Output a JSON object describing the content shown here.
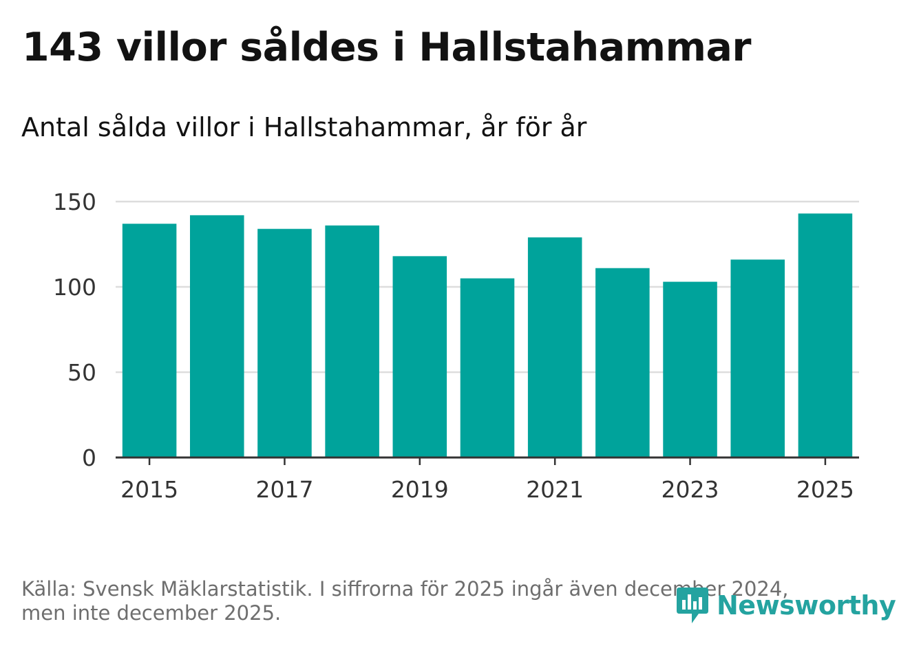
{
  "header": {
    "title": "143 villor såldes i Hallstahammar",
    "subtitle": "Antal sålda villor i Hallstahammar, år för år"
  },
  "colors": {
    "bar": "#00a39b",
    "grid": "#dddddd",
    "axis": "#333333",
    "brand": "#24a3a0"
  },
  "chart_data": {
    "type": "bar",
    "title": "143 villor såldes i Hallstahammar",
    "subtitle": "Antal sålda villor i Hallstahammar, år för år",
    "categories": [
      "2015",
      "2016",
      "2017",
      "2018",
      "2019",
      "2020",
      "2021",
      "2022",
      "2023",
      "2024",
      "2025"
    ],
    "values": [
      137,
      142,
      134,
      136,
      118,
      105,
      129,
      111,
      103,
      116,
      143
    ],
    "x_tick_labels": [
      "2015",
      "2017",
      "2019",
      "2021",
      "2023",
      "2025"
    ],
    "y_ticks": [
      0,
      50,
      100,
      150
    ],
    "ylim": [
      0,
      150
    ],
    "xlabel": "",
    "ylabel": ""
  },
  "footer": {
    "source_line1": "Källa: Svensk Mäklarstatistik. I siffrorna för 2025 ingår även december 2024,",
    "source_line2": "men inte december 2025.",
    "logo_text": "Newsworthy",
    "logo_icon": "newsworthy-logo-icon"
  }
}
